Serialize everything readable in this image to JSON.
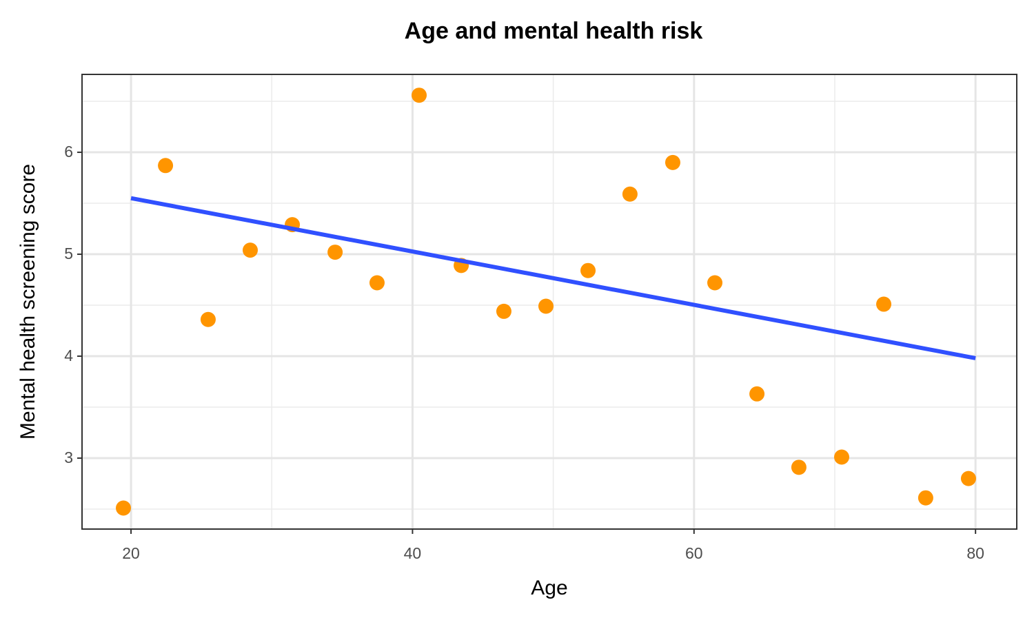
{
  "chart_data": {
    "type": "scatter",
    "title": "Age and mental health risk",
    "x_label": "Age",
    "y_label": "Mental health screening score",
    "xlim": [
      16.52,
      82.93
    ],
    "ylim": [
      2.304,
      6.764
    ],
    "xticks": [
      20,
      40,
      60,
      80
    ],
    "yticks": [
      3,
      4,
      5,
      6
    ],
    "xminorticks": [
      30,
      50,
      70
    ],
    "yminorticks": [
      2.5,
      3.5,
      4.5,
      5.5,
      6.5
    ],
    "grid": true,
    "series": [
      {
        "type": "scatter",
        "color": "#ff9500",
        "x": [
          19.46,
          22.45,
          25.48,
          28.47,
          31.46,
          34.5,
          37.48,
          40.47,
          43.46,
          46.49,
          49.48,
          52.47,
          55.45,
          58.49,
          61.48,
          64.47,
          67.45,
          70.49,
          73.48,
          76.46,
          79.5
        ],
        "values": [
          2.51,
          5.87,
          4.36,
          5.04,
          5.29,
          5.02,
          4.72,
          6.56,
          4.89,
          4.44,
          4.49,
          4.84,
          5.59,
          5.9,
          4.72,
          3.63,
          2.91,
          3.01,
          4.51,
          2.61,
          2.8
        ]
      },
      {
        "type": "line",
        "color": "#3050ff",
        "x": [
          20,
          80
        ],
        "values": [
          5.55,
          3.98
        ]
      }
    ]
  }
}
